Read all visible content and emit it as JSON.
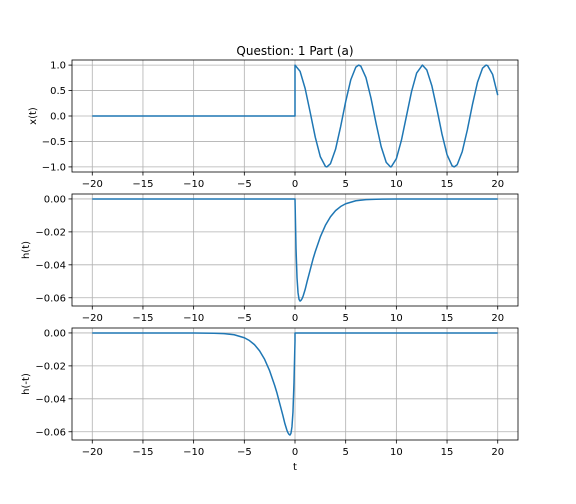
{
  "figure": {
    "title": "Question: 1 Part (a)",
    "line_color": "#1f77b4",
    "grid": true
  },
  "chart_data": [
    {
      "type": "line",
      "title": "Question: 1 Part (a)",
      "xlabel": "",
      "ylabel": "x(t)",
      "xlim": [
        -22,
        22
      ],
      "ylim": [
        -1.1,
        1.1
      ],
      "xticks": [
        -20,
        -15,
        -10,
        -5,
        0,
        5,
        10,
        15,
        20
      ],
      "yticks": [
        -1.0,
        -0.5,
        0.0,
        0.5,
        1.0
      ],
      "xtick_labels": [
        "−20",
        "−15",
        "−10",
        "−5",
        "0",
        "5",
        "10",
        "15",
        "20"
      ],
      "ytick_labels": [
        "−1.0",
        "−0.5",
        "0.0",
        "0.5",
        "1.0"
      ],
      "series": [
        {
          "x": [
            -20,
            0,
            0,
            0.5,
            1,
            1.5,
            2,
            2.5,
            3,
            3.14,
            3.5,
            4,
            4.5,
            5,
            5.5,
            6,
            6.28,
            6.5,
            7,
            7.5,
            8,
            8.5,
            9,
            9.42,
            9.5,
            10,
            10.5,
            11,
            11.5,
            12,
            12.57,
            13,
            13.5,
            14,
            14.5,
            15,
            15.5,
            15.71,
            16,
            16.5,
            17,
            17.5,
            18,
            18.5,
            18.85,
            19,
            19.5,
            20
          ],
          "y": [
            0,
            0,
            1.0,
            0.878,
            0.54,
            0.071,
            -0.416,
            -0.801,
            -0.99,
            -1.0,
            -0.936,
            -0.654,
            -0.211,
            0.284,
            0.709,
            0.96,
            1.0,
            0.977,
            0.754,
            0.347,
            -0.146,
            -0.602,
            -0.911,
            -1.0,
            -0.997,
            -0.839,
            -0.476,
            0.004,
            0.483,
            0.844,
            1.0,
            0.907,
            0.595,
            0.137,
            -0.355,
            -0.76,
            -0.979,
            -1.0,
            -0.958,
            -0.699,
            -0.275,
            0.219,
            0.66,
            0.939,
            1.0,
            0.989,
            0.815,
            0.408
          ]
        }
      ]
    },
    {
      "type": "line",
      "xlabel": "",
      "ylabel": "h(t)",
      "xlim": [
        -22,
        22
      ],
      "ylim": [
        -0.065,
        0.003
      ],
      "xticks": [
        -20,
        -15,
        -10,
        -5,
        0,
        5,
        10,
        15,
        20
      ],
      "yticks": [
        0.0,
        -0.02,
        -0.04,
        -0.06
      ],
      "xtick_labels": [
        "−20",
        "−15",
        "−10",
        "−5",
        "0",
        "5",
        "10",
        "15",
        "20"
      ],
      "ytick_labels": [
        "0.00",
        "−0.02",
        "−0.04",
        "−0.06"
      ],
      "series": [
        {
          "x": [
            -20,
            0,
            0.1,
            0.2,
            0.3,
            0.4,
            0.5,
            0.6,
            0.7,
            0.8,
            1,
            1.2,
            1.5,
            1.8,
            2,
            2.5,
            3,
            3.5,
            4,
            4.5,
            5,
            6,
            7,
            8,
            10,
            20
          ],
          "y": [
            0,
            0,
            -0.03,
            -0.048,
            -0.057,
            -0.061,
            -0.062,
            -0.0615,
            -0.0605,
            -0.059,
            -0.055,
            -0.05,
            -0.043,
            -0.036,
            -0.032,
            -0.023,
            -0.016,
            -0.0108,
            -0.0071,
            -0.0046,
            -0.0029,
            -0.0011,
            -0.0004,
            -0.00015,
            0,
            0
          ]
        }
      ]
    },
    {
      "type": "line",
      "xlabel": "t",
      "ylabel": "h(-t)",
      "xlim": [
        -22,
        22
      ],
      "ylim": [
        -0.065,
        0.003
      ],
      "xticks": [
        -20,
        -15,
        -10,
        -5,
        0,
        5,
        10,
        15,
        20
      ],
      "yticks": [
        0.0,
        -0.02,
        -0.04,
        -0.06
      ],
      "xtick_labels": [
        "−20",
        "−15",
        "−10",
        "−5",
        "0",
        "5",
        "10",
        "15",
        "20"
      ],
      "ytick_labels": [
        "0.00",
        "−0.02",
        "−0.04",
        "−0.06"
      ],
      "series": [
        {
          "x": [
            -20,
            -10,
            -8,
            -7,
            -6,
            -5,
            -4.5,
            -4,
            -3.5,
            -3,
            -2.5,
            -2,
            -1.8,
            -1.5,
            -1.2,
            -1,
            -0.8,
            -0.7,
            -0.6,
            -0.5,
            -0.4,
            -0.3,
            -0.2,
            -0.1,
            0,
            0,
            20
          ],
          "y": [
            0,
            0,
            -0.00015,
            -0.0004,
            -0.0011,
            -0.0029,
            -0.0046,
            -0.0071,
            -0.0108,
            -0.016,
            -0.023,
            -0.032,
            -0.036,
            -0.043,
            -0.05,
            -0.055,
            -0.059,
            -0.0605,
            -0.0615,
            -0.062,
            -0.061,
            -0.057,
            -0.048,
            -0.03,
            -0.005,
            0,
            0
          ]
        }
      ]
    }
  ]
}
